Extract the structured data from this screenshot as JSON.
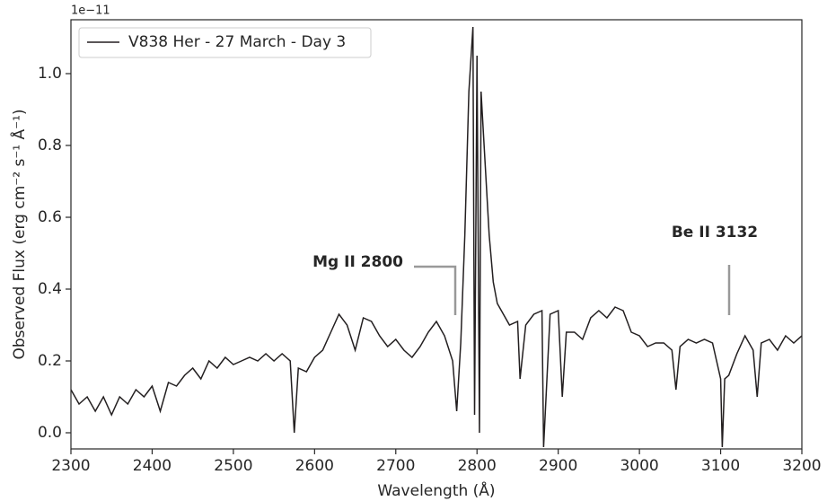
{
  "chart_data": {
    "type": "line",
    "offset_text": "1e−11",
    "x_label": "Wavelength (Å)",
    "y_label": "Observed Flux (erg cm⁻² s⁻¹ Å⁻¹)",
    "legend": "upper left",
    "annotations": [
      "Mg II 2800",
      "Be II 3132"
    ],
    "xlim": [
      2300,
      3200
    ],
    "xticks": [
      2300,
      2400,
      2500,
      2600,
      2700,
      2800,
      2900,
      3000,
      3100,
      3200
    ],
    "ylim": [
      -0.045,
      1.15
    ],
    "yticks": [
      {
        "value": 0,
        "label": "0.0"
      },
      0.2,
      0.4,
      0.6,
      0.8,
      {
        "value": 1,
        "label": "1.0"
      }
    ],
    "x": [
      2300,
      2310,
      2320,
      2330,
      2340,
      2350,
      2360,
      2370,
      2380,
      2390,
      2400,
      2410,
      2420,
      2430,
      2440,
      2450,
      2460,
      2470,
      2480,
      2490,
      2500,
      2510,
      2520,
      2530,
      2540,
      2550,
      2560,
      2570,
      2575,
      2580,
      2590,
      2600,
      2610,
      2620,
      2630,
      2640,
      2650,
      2660,
      2670,
      2680,
      2690,
      2700,
      2710,
      2720,
      2730,
      2740,
      2750,
      2760,
      2770,
      2775,
      2780,
      2785,
      2790,
      2795,
      2797,
      2800,
      2803,
      2805,
      2810,
      2815,
      2820,
      2825,
      2830,
      2840,
      2850,
      2853,
      2860,
      2870,
      2880,
      2882,
      2890,
      2900,
      2905,
      2910,
      2920,
      2930,
      2940,
      2950,
      2960,
      2970,
      2980,
      2990,
      3000,
      3010,
      3020,
      3030,
      3040,
      3045,
      3050,
      3060,
      3070,
      3080,
      3090,
      3100,
      3102,
      3105,
      3110,
      3120,
      3130,
      3140,
      3145,
      3150,
      3160,
      3170,
      3180,
      3190,
      3200
    ],
    "series": [
      {
        "name": "V838 Her - 27 March - Day 3",
        "color": "#231f20",
        "values": [
          0.12,
          0.08,
          0.1,
          0.06,
          0.1,
          0.05,
          0.1,
          0.08,
          0.12,
          0.1,
          0.13,
          0.06,
          0.14,
          0.13,
          0.16,
          0.18,
          0.15,
          0.2,
          0.18,
          0.21,
          0.19,
          0.2,
          0.21,
          0.2,
          0.22,
          0.2,
          0.22,
          0.2,
          0.0,
          0.18,
          0.17,
          0.21,
          0.23,
          0.28,
          0.33,
          0.3,
          0.23,
          0.32,
          0.31,
          0.27,
          0.24,
          0.26,
          0.23,
          0.21,
          0.24,
          0.28,
          0.31,
          0.27,
          0.2,
          0.06,
          0.25,
          0.55,
          0.95,
          1.13,
          0.05,
          1.05,
          0.0,
          0.95,
          0.75,
          0.55,
          0.42,
          0.36,
          0.34,
          0.3,
          0.31,
          0.15,
          0.3,
          0.33,
          0.34,
          -0.04,
          0.33,
          0.34,
          0.1,
          0.28,
          0.28,
          0.26,
          0.32,
          0.34,
          0.32,
          0.35,
          0.34,
          0.28,
          0.27,
          0.24,
          0.25,
          0.25,
          0.23,
          0.12,
          0.24,
          0.26,
          0.25,
          0.26,
          0.25,
          0.15,
          -0.04,
          0.15,
          0.16,
          0.22,
          0.27,
          0.23,
          0.1,
          0.25,
          0.26,
          0.23,
          0.27,
          0.25,
          0.27
        ]
      }
    ]
  }
}
